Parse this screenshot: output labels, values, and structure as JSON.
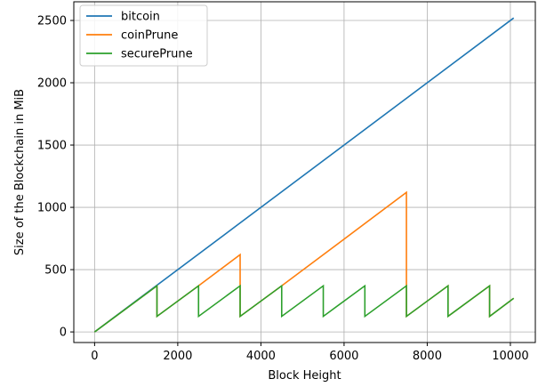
{
  "chart_data": {
    "type": "line",
    "title": "",
    "xlabel": "Block Height",
    "ylabel": "Size of the Blockchain in MiB",
    "xlim": [
      -500,
      10600
    ],
    "ylim": [
      -85,
      2650
    ],
    "xticks": [
      0,
      2000,
      4000,
      6000,
      8000,
      10000
    ],
    "xtick_labels": [
      "0",
      "2000",
      "4000",
      "6000",
      "8000",
      "10000"
    ],
    "yticks": [
      0,
      500,
      1000,
      1500,
      2000,
      2500
    ],
    "ytick_labels": [
      "0",
      "500",
      "1000",
      "1500",
      "2000",
      "2500"
    ],
    "grid": true,
    "legend_placement": "top-left",
    "series": [
      {
        "name": "bitcoin",
        "color": "#1f77b4",
        "x": [
          0,
          10080
        ],
        "y": [
          0,
          2520
        ]
      },
      {
        "name": "coinPrune",
        "color": "#ff7f0e",
        "x": [
          0,
          1500,
          1500,
          2500,
          3500,
          3500,
          4500,
          7500,
          7500,
          8500,
          8500,
          9500,
          9500,
          10080
        ],
        "y": [
          0,
          370,
          125,
          370,
          620,
          125,
          370,
          1120,
          125,
          370,
          125,
          370,
          125,
          270
        ]
      },
      {
        "name": "securePrune",
        "color": "#2ca02c",
        "x": [
          0,
          1500,
          1500,
          2500,
          2500,
          3500,
          3500,
          4500,
          4500,
          5500,
          5500,
          6500,
          6500,
          7500,
          7500,
          8500,
          8500,
          9500,
          9500,
          10080
        ],
        "y": [
          0,
          370,
          125,
          370,
          125,
          370,
          125,
          370,
          125,
          370,
          125,
          370,
          125,
          370,
          125,
          370,
          125,
          370,
          125,
          270
        ]
      }
    ]
  }
}
